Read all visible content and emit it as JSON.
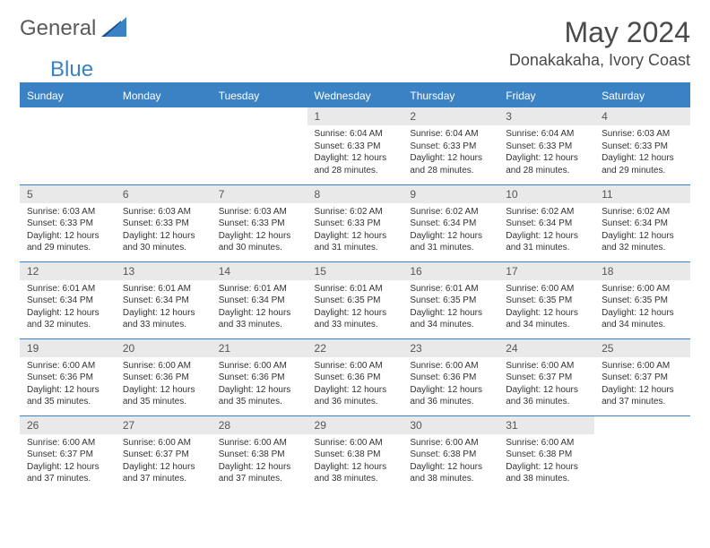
{
  "logo": {
    "part1": "General",
    "part2": "Blue"
  },
  "title": "May 2024",
  "location": "Donakakaha, Ivory Coast",
  "colors": {
    "header_bg": "#3b82c4",
    "header_text": "#ffffff",
    "daynum_bg": "#e9e9e9",
    "border": "#3b82c4",
    "text": "#333333",
    "logo_gray": "#5a5a5a",
    "logo_blue": "#3b82c4"
  },
  "weekdays": [
    "Sunday",
    "Monday",
    "Tuesday",
    "Wednesday",
    "Thursday",
    "Friday",
    "Saturday"
  ],
  "weeks": [
    [
      {
        "n": "",
        "sr": "",
        "ss": "",
        "dl": ""
      },
      {
        "n": "",
        "sr": "",
        "ss": "",
        "dl": ""
      },
      {
        "n": "",
        "sr": "",
        "ss": "",
        "dl": ""
      },
      {
        "n": "1",
        "sr": "6:04 AM",
        "ss": "6:33 PM",
        "dl": "12 hours and 28 minutes."
      },
      {
        "n": "2",
        "sr": "6:04 AM",
        "ss": "6:33 PM",
        "dl": "12 hours and 28 minutes."
      },
      {
        "n": "3",
        "sr": "6:04 AM",
        "ss": "6:33 PM",
        "dl": "12 hours and 28 minutes."
      },
      {
        "n": "4",
        "sr": "6:03 AM",
        "ss": "6:33 PM",
        "dl": "12 hours and 29 minutes."
      }
    ],
    [
      {
        "n": "5",
        "sr": "6:03 AM",
        "ss": "6:33 PM",
        "dl": "12 hours and 29 minutes."
      },
      {
        "n": "6",
        "sr": "6:03 AM",
        "ss": "6:33 PM",
        "dl": "12 hours and 30 minutes."
      },
      {
        "n": "7",
        "sr": "6:03 AM",
        "ss": "6:33 PM",
        "dl": "12 hours and 30 minutes."
      },
      {
        "n": "8",
        "sr": "6:02 AM",
        "ss": "6:33 PM",
        "dl": "12 hours and 31 minutes."
      },
      {
        "n": "9",
        "sr": "6:02 AM",
        "ss": "6:34 PM",
        "dl": "12 hours and 31 minutes."
      },
      {
        "n": "10",
        "sr": "6:02 AM",
        "ss": "6:34 PM",
        "dl": "12 hours and 31 minutes."
      },
      {
        "n": "11",
        "sr": "6:02 AM",
        "ss": "6:34 PM",
        "dl": "12 hours and 32 minutes."
      }
    ],
    [
      {
        "n": "12",
        "sr": "6:01 AM",
        "ss": "6:34 PM",
        "dl": "12 hours and 32 minutes."
      },
      {
        "n": "13",
        "sr": "6:01 AM",
        "ss": "6:34 PM",
        "dl": "12 hours and 33 minutes."
      },
      {
        "n": "14",
        "sr": "6:01 AM",
        "ss": "6:34 PM",
        "dl": "12 hours and 33 minutes."
      },
      {
        "n": "15",
        "sr": "6:01 AM",
        "ss": "6:35 PM",
        "dl": "12 hours and 33 minutes."
      },
      {
        "n": "16",
        "sr": "6:01 AM",
        "ss": "6:35 PM",
        "dl": "12 hours and 34 minutes."
      },
      {
        "n": "17",
        "sr": "6:00 AM",
        "ss": "6:35 PM",
        "dl": "12 hours and 34 minutes."
      },
      {
        "n": "18",
        "sr": "6:00 AM",
        "ss": "6:35 PM",
        "dl": "12 hours and 34 minutes."
      }
    ],
    [
      {
        "n": "19",
        "sr": "6:00 AM",
        "ss": "6:36 PM",
        "dl": "12 hours and 35 minutes."
      },
      {
        "n": "20",
        "sr": "6:00 AM",
        "ss": "6:36 PM",
        "dl": "12 hours and 35 minutes."
      },
      {
        "n": "21",
        "sr": "6:00 AM",
        "ss": "6:36 PM",
        "dl": "12 hours and 35 minutes."
      },
      {
        "n": "22",
        "sr": "6:00 AM",
        "ss": "6:36 PM",
        "dl": "12 hours and 36 minutes."
      },
      {
        "n": "23",
        "sr": "6:00 AM",
        "ss": "6:36 PM",
        "dl": "12 hours and 36 minutes."
      },
      {
        "n": "24",
        "sr": "6:00 AM",
        "ss": "6:37 PM",
        "dl": "12 hours and 36 minutes."
      },
      {
        "n": "25",
        "sr": "6:00 AM",
        "ss": "6:37 PM",
        "dl": "12 hours and 37 minutes."
      }
    ],
    [
      {
        "n": "26",
        "sr": "6:00 AM",
        "ss": "6:37 PM",
        "dl": "12 hours and 37 minutes."
      },
      {
        "n": "27",
        "sr": "6:00 AM",
        "ss": "6:37 PM",
        "dl": "12 hours and 37 minutes."
      },
      {
        "n": "28",
        "sr": "6:00 AM",
        "ss": "6:38 PM",
        "dl": "12 hours and 37 minutes."
      },
      {
        "n": "29",
        "sr": "6:00 AM",
        "ss": "6:38 PM",
        "dl": "12 hours and 38 minutes."
      },
      {
        "n": "30",
        "sr": "6:00 AM",
        "ss": "6:38 PM",
        "dl": "12 hours and 38 minutes."
      },
      {
        "n": "31",
        "sr": "6:00 AM",
        "ss": "6:38 PM",
        "dl": "12 hours and 38 minutes."
      },
      {
        "n": "",
        "sr": "",
        "ss": "",
        "dl": ""
      }
    ]
  ],
  "labels": {
    "sunrise": "Sunrise:",
    "sunset": "Sunset:",
    "daylight": "Daylight:"
  }
}
